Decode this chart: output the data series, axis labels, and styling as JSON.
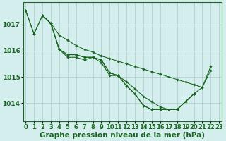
{
  "background_color": "#d4eeee",
  "grid_color": "#aacccc",
  "line_color": "#1a6620",
  "marker_color": "#1a6620",
  "xlabel": "Graphe pression niveau de la mer (hPa)",
  "xlabel_fontsize": 7.5,
  "ylabel_fontsize": 6.5,
  "tick_fontsize": 6.0,
  "ylim": [
    1013.3,
    1017.85
  ],
  "xlim": [
    -0.3,
    23.3
  ],
  "yticks": [
    1014,
    1015,
    1016,
    1017
  ],
  "xticks": [
    0,
    1,
    2,
    3,
    4,
    5,
    6,
    7,
    8,
    9,
    10,
    11,
    12,
    13,
    14,
    15,
    16,
    17,
    18,
    19,
    20,
    21,
    22,
    23
  ],
  "series": [
    {
      "x": [
        0,
        1,
        2,
        3,
        4,
        5,
        6,
        7,
        8,
        9,
        10,
        11,
        12,
        13,
        14,
        15,
        16,
        17,
        18,
        19,
        20,
        21,
        22
      ],
      "y": [
        1017.55,
        1016.65,
        1017.35,
        1017.05,
        1016.6,
        1016.4,
        1016.2,
        1016.05,
        1015.95,
        1015.8,
        1015.7,
        1015.6,
        1015.5,
        1015.4,
        1015.3,
        1015.2,
        1015.1,
        1015.0,
        1014.9,
        1014.8,
        1014.7,
        1014.6,
        1015.25
      ]
    },
    {
      "x": [
        2,
        3,
        4,
        5,
        6,
        7,
        8,
        9,
        10,
        11,
        12,
        13,
        14,
        15,
        16,
        17,
        18,
        19,
        20,
        21,
        22
      ],
      "y": [
        1017.35,
        1017.05,
        1016.05,
        1015.75,
        1015.75,
        1015.65,
        1015.75,
        1015.55,
        1015.05,
        1015.05,
        1014.8,
        1014.55,
        1014.25,
        1014.05,
        1013.85,
        1013.75,
        1013.75,
        1014.05,
        1014.35,
        1014.6,
        1015.4
      ]
    },
    {
      "x": [
        2,
        3,
        4,
        5,
        6,
        7,
        8,
        9,
        10,
        11,
        12,
        13,
        14,
        15,
        16,
        17,
        18,
        19,
        20
      ],
      "y": [
        1017.35,
        1017.05,
        1016.05,
        1015.85,
        1015.85,
        1015.75,
        1015.75,
        1015.65,
        1015.15,
        1015.05,
        1014.65,
        1014.35,
        1013.9,
        1013.75,
        1013.75,
        1013.75,
        1013.75,
        1014.05,
        1014.35
      ]
    },
    {
      "x": [
        0,
        1,
        2,
        3,
        4,
        5,
        6,
        7,
        8,
        9,
        10,
        11,
        12,
        13,
        14,
        15,
        16,
        17,
        18,
        19,
        20
      ],
      "y": [
        1017.55,
        1016.65,
        1017.35,
        1017.05,
        1016.05,
        1015.85,
        1015.85,
        1015.75,
        1015.75,
        1015.65,
        1015.15,
        1015.05,
        1014.65,
        1014.35,
        1013.9,
        1013.75,
        1013.75,
        1013.75,
        1013.75,
        1014.05,
        1014.35
      ]
    }
  ]
}
